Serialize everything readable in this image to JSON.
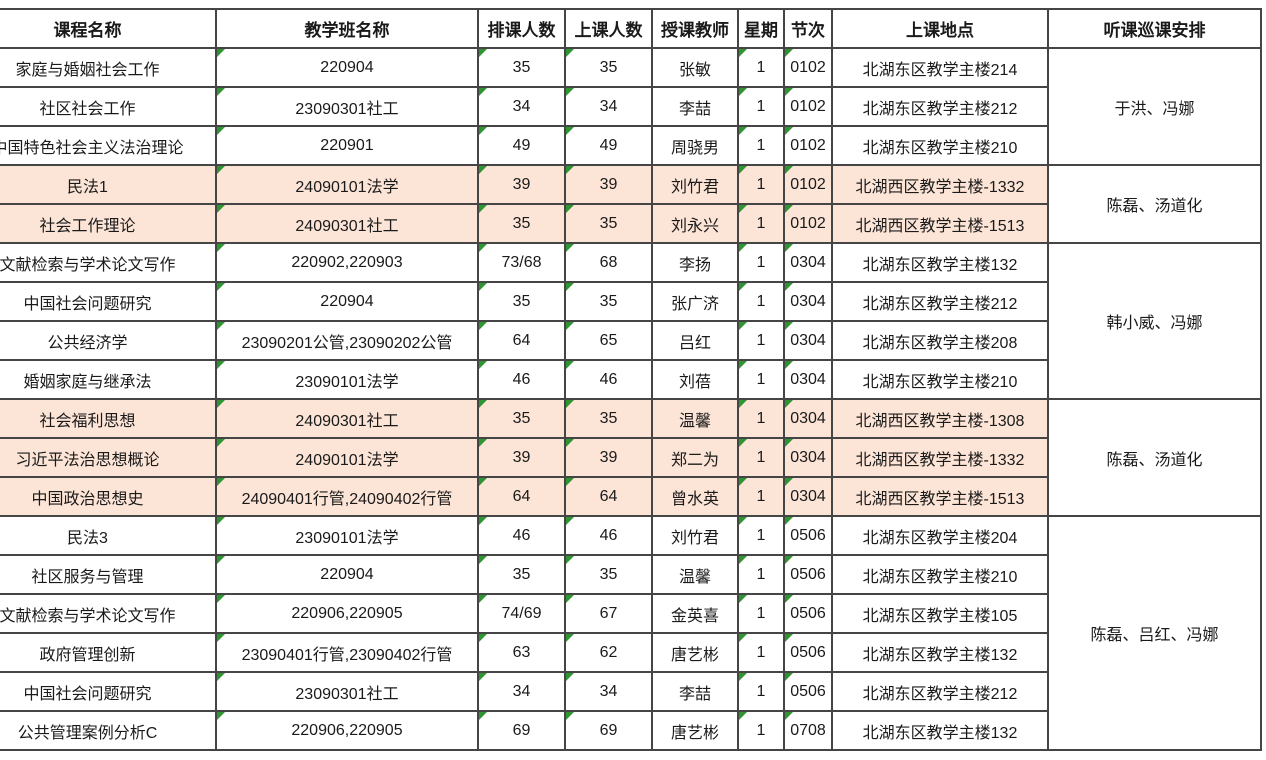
{
  "table": {
    "columns": [
      {
        "key": "course",
        "label": "课程名称"
      },
      {
        "key": "class_name",
        "label": "教学班名称"
      },
      {
        "key": "planned",
        "label": "排课人数"
      },
      {
        "key": "actual",
        "label": "上课人数"
      },
      {
        "key": "teacher",
        "label": "授课教师"
      },
      {
        "key": "weekday",
        "label": "星期"
      },
      {
        "key": "period",
        "label": "节次"
      },
      {
        "key": "location",
        "label": "上课地点"
      },
      {
        "key": "observers",
        "label": "听课巡课安排"
      }
    ],
    "indicator_columns": [
      "class_name",
      "planned",
      "actual",
      "weekday",
      "period"
    ],
    "colors": {
      "highlight": "#fce4d6",
      "border": "#454545",
      "indicator": "#2f9532",
      "background": "#ffffff"
    },
    "rows": [
      {
        "course": "家庭与婚姻社会工作",
        "class_name": "220904",
        "planned": "35",
        "actual": "35",
        "teacher": "张敏",
        "weekday": "1",
        "period": "0102",
        "location": "北湖东区教学主楼214",
        "highlight": false
      },
      {
        "course": "社区社会工作",
        "class_name": "23090301社工",
        "planned": "34",
        "actual": "34",
        "teacher": "李喆",
        "weekday": "1",
        "period": "0102",
        "location": "北湖东区教学主楼212",
        "highlight": false
      },
      {
        "course": "中国特色社会主义法治理论",
        "class_name": "220901",
        "planned": "49",
        "actual": "49",
        "teacher": "周骁男",
        "weekday": "1",
        "period": "0102",
        "location": "北湖东区教学主楼210",
        "highlight": false
      },
      {
        "course": "民法1",
        "class_name": "24090101法学",
        "planned": "39",
        "actual": "39",
        "teacher": "刘竹君",
        "weekday": "1",
        "period": "0102",
        "location": "北湖西区教学主楼-1332",
        "highlight": true
      },
      {
        "course": "社会工作理论",
        "class_name": "24090301社工",
        "planned": "35",
        "actual": "35",
        "teacher": "刘永兴",
        "weekday": "1",
        "period": "0102",
        "location": "北湖西区教学主楼-1513",
        "highlight": true
      },
      {
        "course": "文献检索与学术论文写作",
        "class_name": "220902,220903",
        "planned": "73/68",
        "actual": "68",
        "teacher": "李扬",
        "weekday": "1",
        "period": "0304",
        "location": "北湖东区教学主楼132",
        "highlight": false
      },
      {
        "course": "中国社会问题研究",
        "class_name": "220904",
        "planned": "35",
        "actual": "35",
        "teacher": "张广济",
        "weekday": "1",
        "period": "0304",
        "location": "北湖东区教学主楼212",
        "highlight": false
      },
      {
        "course": "公共经济学",
        "class_name": "23090201公管,23090202公管",
        "planned": "64",
        "actual": "65",
        "teacher": "吕红",
        "weekday": "1",
        "period": "0304",
        "location": "北湖东区教学主楼208",
        "highlight": false
      },
      {
        "course": "婚姻家庭与继承法",
        "class_name": "23090101法学",
        "planned": "46",
        "actual": "46",
        "teacher": "刘蓓",
        "weekday": "1",
        "period": "0304",
        "location": "北湖东区教学主楼210",
        "highlight": false
      },
      {
        "course": "社会福利思想",
        "class_name": "24090301社工",
        "planned": "35",
        "actual": "35",
        "teacher": "温馨",
        "weekday": "1",
        "period": "0304",
        "location": "北湖西区教学主楼-1308",
        "highlight": true
      },
      {
        "course": "习近平法治思想概论",
        "class_name": "24090101法学",
        "planned": "39",
        "actual": "39",
        "teacher": "郑二为",
        "weekday": "1",
        "period": "0304",
        "location": "北湖西区教学主楼-1332",
        "highlight": true
      },
      {
        "course": "中国政治思想史",
        "class_name": "24090401行管,24090402行管",
        "planned": "64",
        "actual": "64",
        "teacher": "曾水英",
        "weekday": "1",
        "period": "0304",
        "location": "北湖西区教学主楼-1513",
        "highlight": true
      },
      {
        "course": "民法3",
        "class_name": "23090101法学",
        "planned": "46",
        "actual": "46",
        "teacher": "刘竹君",
        "weekday": "1",
        "period": "0506",
        "location": "北湖东区教学主楼204",
        "highlight": false
      },
      {
        "course": "社区服务与管理",
        "class_name": "220904",
        "planned": "35",
        "actual": "35",
        "teacher": "温馨",
        "weekday": "1",
        "period": "0506",
        "location": "北湖东区教学主楼210",
        "highlight": false
      },
      {
        "course": "文献检索与学术论文写作",
        "class_name": "220906,220905",
        "planned": "74/69",
        "actual": "67",
        "teacher": "金英喜",
        "weekday": "1",
        "period": "0506",
        "location": "北湖东区教学主楼105",
        "highlight": false
      },
      {
        "course": "政府管理创新",
        "class_name": "23090401行管,23090402行管",
        "planned": "63",
        "actual": "62",
        "teacher": "唐艺彬",
        "weekday": "1",
        "period": "0506",
        "location": "北湖东区教学主楼132",
        "highlight": false
      },
      {
        "course": "中国社会问题研究",
        "class_name": "23090301社工",
        "planned": "34",
        "actual": "34",
        "teacher": "李喆",
        "weekday": "1",
        "period": "0506",
        "location": "北湖东区教学主楼212",
        "highlight": false
      },
      {
        "course": "公共管理案例分析C",
        "class_name": "220906,220905",
        "planned": "69",
        "actual": "69",
        "teacher": "唐艺彬",
        "weekday": "1",
        "period": "0708",
        "location": "北湖东区教学主楼132",
        "highlight": false
      }
    ],
    "observer_groups": [
      {
        "start": 0,
        "end": 2,
        "label": "于洪、冯娜"
      },
      {
        "start": 3,
        "end": 4,
        "label": "陈磊、汤道化"
      },
      {
        "start": 5,
        "end": 8,
        "label": "韩小威、冯娜"
      },
      {
        "start": 9,
        "end": 11,
        "label": "陈磊、汤道化"
      },
      {
        "start": 12,
        "end": 17,
        "label": "陈磊、吕红、冯娜"
      }
    ]
  }
}
